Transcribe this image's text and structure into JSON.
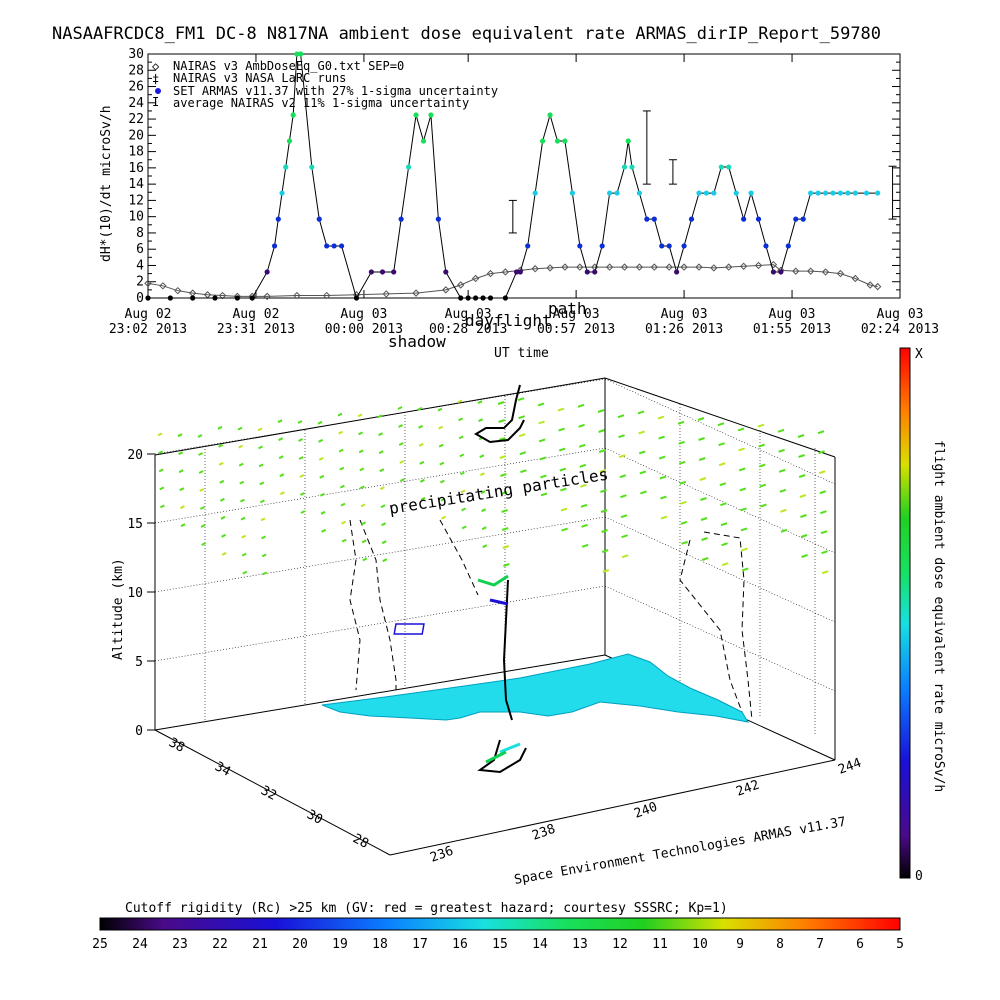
{
  "title": "NASAAFRCDC8_FM1 DC-8   N817NA ambient dose equivalent rate ARMAS_dirIP_Report_59780",
  "colors": {
    "background": "#ffffff",
    "axis": "#000000",
    "nairas_v3": "#555555",
    "armas_low": "#3a0a6e",
    "armas_mid": "#0a2fd6",
    "armas_high": "#14e05a",
    "surface": "#22dcec",
    "particles": "#52e016"
  },
  "chart_data": [
    {
      "type": "line",
      "title": "NASAAFRCDC8_FM1 DC-8   N817NA ambient dose equivalent rate ARMAS_dirIP_Report_59780",
      "xlabel": "UT time",
      "ylabel": "dH*(10)/dt microSv/h",
      "ylim": [
        0,
        30
      ],
      "yticks": [
        "0",
        "2",
        "4",
        "6",
        "8",
        "10",
        "12",
        "14",
        "16",
        "18",
        "20",
        "22",
        "24",
        "26",
        "28",
        "30"
      ],
      "xticks": [
        [
          "Aug 02",
          "23:02 2013"
        ],
        [
          "Aug 02",
          "23:31 2013"
        ],
        [
          "Aug 03",
          "00:00 2013"
        ],
        [
          "Aug 03",
          "00:28 2013"
        ],
        [
          "Aug 03",
          "00:57 2013"
        ],
        [
          "Aug 03",
          "01:26 2013"
        ],
        [
          "Aug 03",
          "01:55 2013"
        ],
        [
          "Aug 03",
          "02:24 2013"
        ]
      ],
      "x_minutes": [
        0,
        29,
        58,
        86,
        115,
        144,
        173,
        202
      ],
      "legend": [
        "NAIRAS v3 AmbDoseEq_G0.txt SEP=0",
        "NAIRAS v3 NASA LaRC runs",
        "SET ARMAS v11.37 with 27% 1-sigma uncertainty",
        "average NAIRAS v2 11% 1-sigma uncertainty"
      ],
      "legend_placement": "top-left",
      "annotations": [
        "shadow",
        "dayflight",
        "path"
      ],
      "series": [
        {
          "name": "SET ARMAS v11.37 with 27% 1-sigma uncertainty",
          "x": [
            0,
            6,
            12,
            18,
            24,
            28,
            32,
            34,
            35,
            36,
            37,
            38,
            39,
            40,
            41,
            44,
            46,
            48,
            50,
            52,
            56,
            60,
            63,
            66,
            68,
            70,
            72,
            74,
            76,
            78,
            80,
            84,
            86,
            88,
            90,
            92,
            96,
            99,
            100,
            102,
            104,
            106,
            108,
            110,
            112,
            114,
            116,
            118,
            120,
            122,
            124,
            126,
            128,
            129,
            130,
            132,
            134,
            136,
            138,
            140,
            142,
            144,
            146,
            148,
            150,
            152,
            154,
            156,
            158,
            160,
            162,
            164,
            166,
            168,
            170,
            172,
            174,
            176,
            178,
            180,
            182,
            184,
            186,
            188,
            190,
            193,
            196
          ],
          "y": [
            0,
            0,
            0,
            0,
            0,
            0,
            3.2,
            6.4,
            9.7,
            12.9,
            16.1,
            19.3,
            22.5,
            30,
            30,
            16.1,
            9.7,
            6.4,
            6.4,
            6.4,
            0,
            3.2,
            3.2,
            3.2,
            9.7,
            16.1,
            22.5,
            19.3,
            22.5,
            9.7,
            3.2,
            0,
            0,
            0,
            0,
            0,
            0,
            3.2,
            3.2,
            6.4,
            12.9,
            19.3,
            22.5,
            19.3,
            19.3,
            12.9,
            6.4,
            3.2,
            3.2,
            6.4,
            12.9,
            12.9,
            16.1,
            19.3,
            16.1,
            12.9,
            9.7,
            9.7,
            6.4,
            6.4,
            3.2,
            6.4,
            9.7,
            12.9,
            12.9,
            12.9,
            16.1,
            16.1,
            12.9,
            9.7,
            12.9,
            9.7,
            6.4,
            3.2,
            3.2,
            6.4,
            9.7,
            9.7,
            12.9,
            12.9,
            12.9,
            12.9,
            12.9,
            12.9,
            12.9,
            12.9,
            12.9
          ]
        },
        {
          "name": "NAIRAS v3 AmbDoseEq_G0.txt SEP=0",
          "x": [
            0,
            4,
            8,
            12,
            16,
            20,
            24,
            28,
            32,
            40,
            48,
            56,
            64,
            72,
            80,
            84,
            88,
            92,
            96,
            100,
            104,
            108,
            112,
            116,
            120,
            124,
            128,
            132,
            136,
            140,
            144,
            148,
            152,
            156,
            160,
            164,
            168,
            170,
            174,
            178,
            182,
            186,
            190,
            194,
            196
          ],
          "y": [
            1.8,
            1.5,
            0.9,
            0.6,
            0.4,
            0.3,
            0.2,
            0.2,
            0.2,
            0.3,
            0.3,
            0.4,
            0.5,
            0.6,
            1.0,
            1.6,
            2.4,
            3.0,
            3.2,
            3.4,
            3.6,
            3.7,
            3.8,
            3.8,
            3.8,
            3.8,
            3.8,
            3.8,
            3.8,
            3.8,
            3.8,
            3.8,
            3.7,
            3.8,
            3.9,
            4.0,
            4.1,
            3.4,
            3.3,
            3.3,
            3.2,
            3.0,
            2.4,
            1.6,
            1.4
          ]
        },
        {
          "name": "average NAIRAS v2 11% 1-sigma uncertainty",
          "x": [
            98,
            134,
            141,
            200
          ],
          "y": [
            11,
            18,
            15,
            13
          ],
          "err_low": [
            8,
            14,
            14,
            9.7
          ],
          "err_high": [
            12,
            23,
            17,
            16.2
          ]
        }
      ]
    },
    {
      "type": "scatter",
      "ylabel": "Altitude (km)",
      "zticks": [
        "0",
        "5",
        "10",
        "15",
        "20"
      ],
      "lat_ticks": [
        "38",
        "34",
        "32",
        "30",
        "28"
      ],
      "lon_ticks": [
        "236",
        "238",
        "240",
        "242",
        "244"
      ],
      "annotations": [
        "precipitating particles",
        "Space Environment Technologies ARMAS v11.37"
      ],
      "colorbar_label": "flight ambient dose equivalent rate microSv/h",
      "colorbar_ticks": [
        "X",
        "0"
      ]
    },
    {
      "type": "heatmap",
      "title": "Cutoff rigidity (Rc) >25 km (GV: red = greatest hazard; courtesy SSSRC; Kp=1)",
      "ticks": [
        "25",
        "24",
        "23",
        "22",
        "21",
        "20",
        "19",
        "18",
        "17",
        "16",
        "15",
        "14",
        "13",
        "12",
        "11",
        "10",
        "9",
        "8",
        "7",
        "6",
        "5"
      ],
      "range": [
        25,
        5
      ]
    }
  ]
}
